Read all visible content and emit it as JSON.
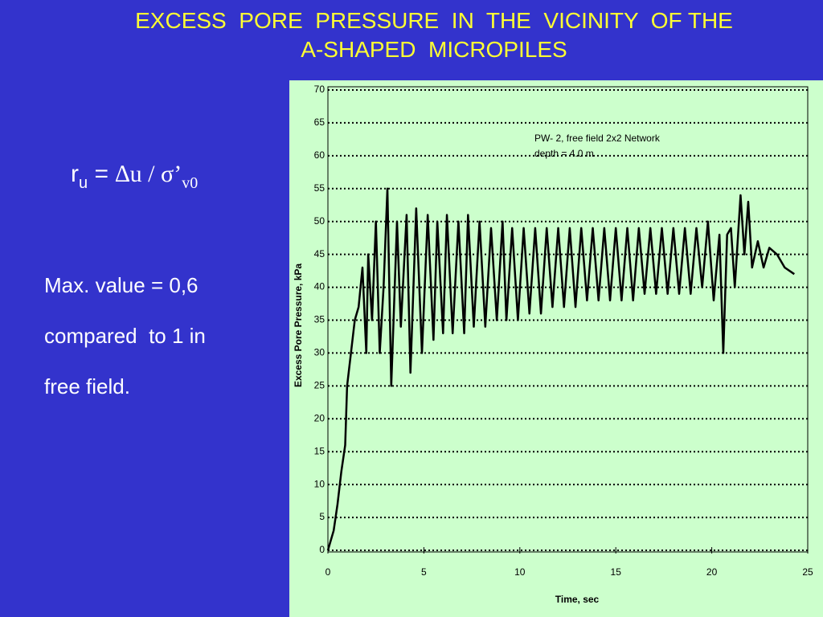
{
  "slide": {
    "title": [
      "EXCESS  PORE  PRESSURE  IN  THE  VICINITY  OF THE",
      "A-SHAPED  MICROPILES"
    ],
    "formula": [
      "r",
      "u",
      " = ",
      "∆u / σ’",
      "v0"
    ],
    "notes": [
      "Max. value = 0,6",
      "compared  to 1 in",
      "free field."
    ]
  },
  "chart_data": {
    "type": "line",
    "xlabel": "Time, sec",
    "ylabel": "Excess Pore Pressure, kPa",
    "annotations": [
      "PW- 2, free field 2x2 Network",
      "depth = 4.0 m"
    ],
    "color": "#000000",
    "grid": true,
    "xlim": [
      0,
      25
    ],
    "xticks": [
      0,
      5,
      10,
      15,
      20,
      25
    ],
    "ylim": [
      0,
      70
    ],
    "yticks": [
      0,
      5,
      10,
      15,
      20,
      25,
      30,
      35,
      40,
      45,
      50,
      55,
      60,
      65,
      70
    ],
    "x": [
      0,
      0.3,
      0.5,
      0.7,
      0.9,
      1.0,
      1.2,
      1.4,
      1.6,
      1.8,
      2.0,
      2.1,
      2.3,
      2.5,
      2.7,
      2.9,
      3.1,
      3.3,
      3.6,
      3.8,
      4.1,
      4.3,
      4.6,
      4.9,
      5.2,
      5.5,
      5.7,
      6.0,
      6.2,
      6.5,
      6.8,
      7.1,
      7.3,
      7.6,
      7.9,
      8.2,
      8.5,
      8.8,
      9.1,
      9.3,
      9.6,
      9.9,
      10.2,
      10.5,
      10.8,
      11.1,
      11.4,
      11.7,
      12.0,
      12.3,
      12.6,
      12.9,
      13.2,
      13.5,
      13.8,
      14.1,
      14.4,
      14.7,
      15.0,
      15.3,
      15.6,
      15.9,
      16.2,
      16.5,
      16.8,
      17.1,
      17.4,
      17.7,
      18.0,
      18.3,
      18.6,
      18.9,
      19.2,
      19.5,
      19.8,
      20.1,
      20.4,
      20.6,
      20.8,
      21.0,
      21.2,
      21.5,
      21.7,
      21.9,
      22.1,
      22.4,
      22.7,
      23.0,
      23.4,
      23.8,
      24.3
    ],
    "values": [
      0,
      3,
      7,
      12,
      16,
      25,
      30,
      35,
      37,
      43,
      30,
      45,
      35,
      50,
      30,
      40,
      55,
      25,
      50,
      34,
      51,
      27,
      52,
      30,
      51,
      32,
      50,
      33,
      51,
      33,
      50,
      33,
      51,
      34,
      50,
      34,
      49,
      35,
      50,
      35,
      49,
      35,
      49,
      36,
      49,
      36,
      49,
      37,
      49,
      37,
      49,
      37,
      49,
      38,
      49,
      38,
      49,
      38,
      49,
      38,
      49,
      38,
      49,
      39,
      49,
      39,
      49,
      39,
      49,
      39,
      49,
      39,
      49,
      40,
      50,
      38,
      48,
      30,
      48,
      49,
      40,
      54,
      45,
      53,
      43,
      47,
      43,
      46,
      45,
      43,
      42
    ]
  }
}
